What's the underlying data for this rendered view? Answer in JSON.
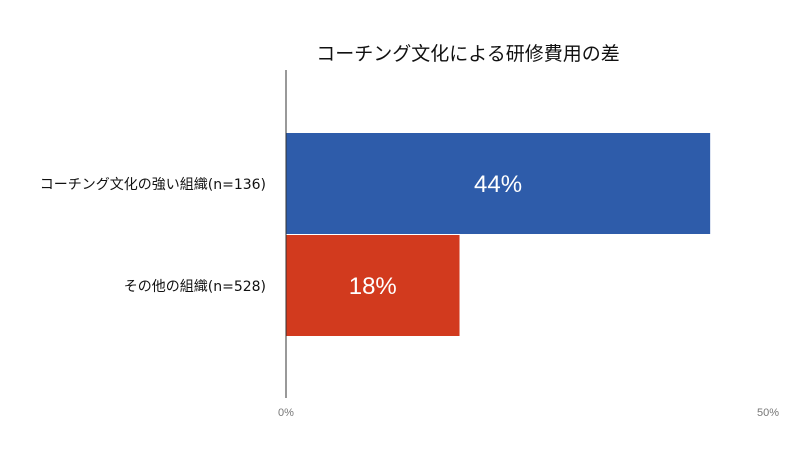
{
  "chart_data": {
    "type": "bar",
    "orientation": "horizontal",
    "title": "コーチング文化による研修費用の差",
    "categories": [
      "コーチング文化の強い組織(n=136)",
      "その他の組織(n=528)"
    ],
    "values": [
      44,
      18
    ],
    "value_labels": [
      "44%",
      "18%"
    ],
    "colors": [
      "#2e5caa",
      "#d23a1e"
    ],
    "xlim": [
      0,
      50
    ],
    "ticks": [
      0,
      50
    ],
    "tick_labels": [
      "0%",
      "50%"
    ],
    "xlabel": "",
    "ylabel": "",
    "grid": false,
    "legend": "none"
  }
}
